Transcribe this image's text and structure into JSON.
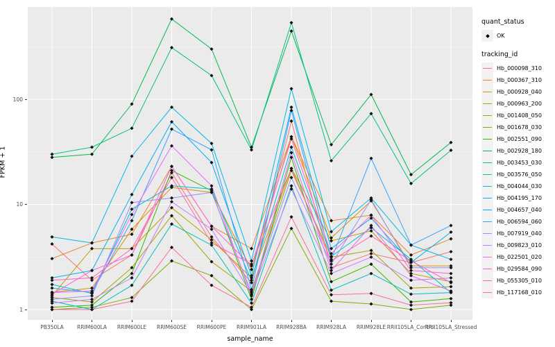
{
  "panel": {
    "background": "#EBEBEB",
    "grid_major_color": "#FFFFFF",
    "grid_minor_color": "#FFFFFF"
  },
  "y_axis": {
    "label": "FPKM + 1",
    "ticks": [
      {
        "label": "1",
        "value": 1
      },
      {
        "label": "10",
        "value": 10
      },
      {
        "label": "100",
        "value": 100
      }
    ]
  },
  "x_axis": {
    "label": "sample_name"
  },
  "legend": {
    "quant_status_title": "quant_status",
    "quant_status_items": [
      {
        "label": "OK",
        "marker": "diamond",
        "color": "#000000"
      }
    ],
    "tracking_title": "tracking_id"
  },
  "chart_data": {
    "type": "line",
    "yscale": "log10",
    "ylim": [
      0.82,
      750
    ],
    "grid": true,
    "legend_position": "right",
    "point_marker": "diamond",
    "point_color": "#111111",
    "xlabel": "sample_name",
    "ylabel": "FPKM + 1",
    "categories": [
      "PB350LA",
      "RRIM600LA",
      "RRIM600LE",
      "RRIM600SE",
      "RRIM600PE",
      "RRIM901LA",
      "RRIM928BA",
      "RRIM928LA",
      "RRIM928LE",
      "RRII105LA_Control",
      "RRII105LA_Stressed"
    ],
    "series": [
      {
        "name": "Hb_000098_310",
        "color": "#F8766D",
        "values": [
          4.2,
          1.9,
          3.3,
          20,
          4.9,
          1.8,
          62,
          2.5,
          3.4,
          2.8,
          3.55
        ]
      },
      {
        "name": "Hb_000367_310",
        "color": "#EA8331",
        "values": [
          3.05,
          4.3,
          5.2,
          23,
          6.2,
          3.8,
          44,
          7.0,
          7.9,
          3.3,
          4.7
        ]
      },
      {
        "name": "Hb_000928_040",
        "color": "#D89000",
        "values": [
          1.46,
          1.6,
          5.8,
          14.5,
          13,
          2.4,
          44,
          4.8,
          10.8,
          2.6,
          2.6
        ]
      },
      {
        "name": "Hb_000963_200",
        "color": "#C09B00",
        "values": [
          1.35,
          3.8,
          3.8,
          9.3,
          4.6,
          2.0,
          22,
          4.5,
          5.6,
          2.2,
          1.84
        ]
      },
      {
        "name": "Hb_001408_050",
        "color": "#A3A500",
        "values": [
          1.3,
          1.18,
          2.5,
          7.8,
          2.85,
          1.5,
          21,
          3.15,
          3.65,
          1.6,
          1.65
        ]
      },
      {
        "name": "Hb_001678_030",
        "color": "#7CAE00",
        "values": [
          1.0,
          1.05,
          1.3,
          2.9,
          2.1,
          1.0,
          5.9,
          1.2,
          1.13,
          1.0,
          1.1
        ]
      },
      {
        "name": "Hb_002551_090",
        "color": "#39B600",
        "values": [
          1.05,
          1.1,
          2.2,
          21,
          13.5,
          1.25,
          28,
          1.84,
          2.7,
          1.18,
          1.27
        ]
      },
      {
        "name": "Hb_002928_180",
        "color": "#00BB4E",
        "values": [
          28,
          30,
          90,
          580,
          300,
          35,
          445,
          37,
          111,
          19.2,
          38.8
        ]
      },
      {
        "name": "Hb_003453_030",
        "color": "#00C087",
        "values": [
          30,
          35,
          53,
          310,
          168,
          33,
          535,
          26,
          73,
          15.8,
          32.7
        ]
      },
      {
        "name": "Hb_003576_050",
        "color": "#00C0B8",
        "values": [
          1.2,
          1.0,
          1.7,
          6.5,
          4.1,
          1.15,
          15,
          1.53,
          2.2,
          1.4,
          1.45
        ]
      },
      {
        "name": "Hb_004044_030",
        "color": "#00BDD0",
        "values": [
          1.73,
          1.42,
          9.0,
          15,
          14,
          1.9,
          35,
          3.2,
          6.0,
          3.0,
          1.45
        ]
      },
      {
        "name": "Hb_004195_170",
        "color": "#00B8E5",
        "values": [
          4.9,
          4.3,
          28.7,
          84,
          38,
          2.9,
          126,
          5.5,
          11.5,
          4.1,
          3.0
        ]
      },
      {
        "name": "Hb_004657_040",
        "color": "#00AFF6",
        "values": [
          2.0,
          2.35,
          12.4,
          61,
          25,
          2.1,
          84,
          3.8,
          7.4,
          2.8,
          5.45
        ]
      },
      {
        "name": "Hb_006594_060",
        "color": "#35A2FF",
        "values": [
          1.6,
          1.45,
          7.0,
          52,
          33,
          1.55,
          78,
          3.0,
          27.4,
          4.1,
          6.3
        ]
      },
      {
        "name": "Hb_007919_040",
        "color": "#9590FF",
        "values": [
          1.25,
          1.35,
          10.4,
          11.5,
          13,
          1.45,
          18,
          2.7,
          11.1,
          2.5,
          2.5
        ]
      },
      {
        "name": "Hb_009823_010",
        "color": "#C77CFF",
        "values": [
          1.15,
          1.25,
          2.0,
          10.6,
          5.8,
          1.4,
          14,
          2.2,
          3.15,
          1.9,
          2.0
        ]
      },
      {
        "name": "Hb_022501_020",
        "color": "#E76BF3",
        "values": [
          1.45,
          1.5,
          8.0,
          36,
          15,
          1.35,
          31,
          2.35,
          6.3,
          2.1,
          1.5
        ]
      },
      {
        "name": "Hb_029584_090",
        "color": "#FA62DB",
        "values": [
          1.4,
          2.35,
          3.3,
          23,
          6.2,
          2.6,
          42,
          3.4,
          7.9,
          2.35,
          2.2
        ]
      },
      {
        "name": "Hb_055305_010",
        "color": "#FF62BC",
        "values": [
          1.9,
          2.0,
          3.8,
          18,
          4.3,
          2.7,
          22,
          2.9,
          5.0,
          2.9,
          1.8
        ]
      },
      {
        "name": "Hb_117168_010",
        "color": "#FF6A98",
        "values": [
          1.0,
          1.0,
          1.2,
          3.9,
          1.7,
          1.05,
          7.6,
          1.38,
          1.42,
          1.1,
          1.16
        ]
      }
    ]
  }
}
